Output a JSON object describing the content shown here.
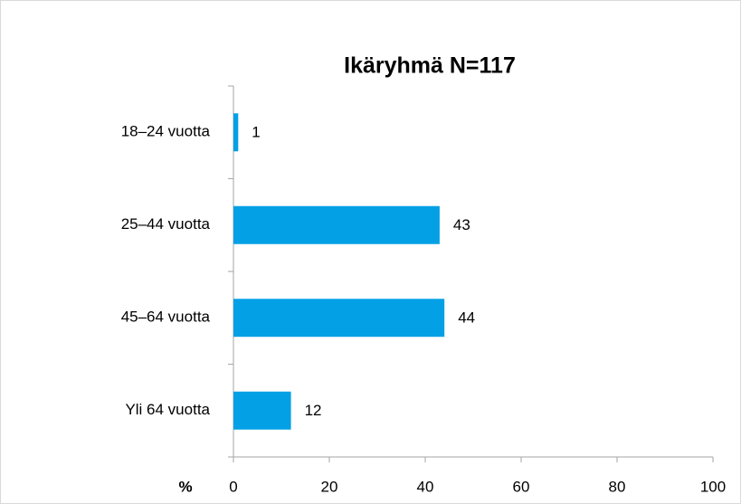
{
  "chart_data": {
    "type": "bar",
    "orientation": "horizontal",
    "title": "Ikäryhmä N=117",
    "x_label": "%",
    "categories": [
      "18–24 vuotta",
      "25–44 vuotta",
      "45–64 vuotta",
      "Yli 64 vuotta"
    ],
    "values": [
      1,
      43,
      44,
      12
    ],
    "color": "#03a0e6",
    "xlim": [
      0,
      100
    ],
    "xticks": [
      0,
      20,
      40,
      60,
      80,
      100
    ],
    "grid": false
  }
}
